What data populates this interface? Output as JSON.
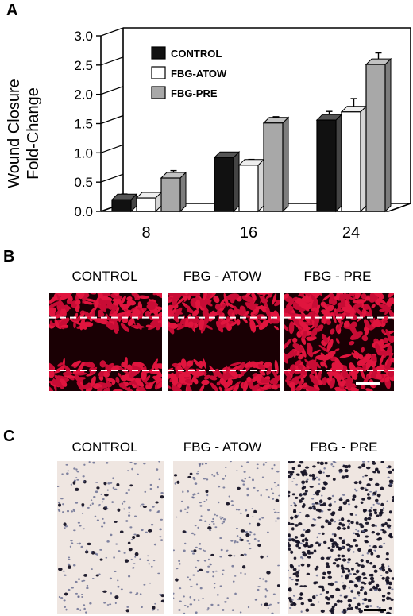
{
  "panels": {
    "a_letter": "A",
    "b_letter": "B",
    "c_letter": "C"
  },
  "chart_data": {
    "type": "bar",
    "ylabel_line1": "Wound Closure",
    "ylabel_line2": "Fold-Change",
    "xlabel": "",
    "categories": [
      "8",
      "16",
      "24"
    ],
    "ylim": [
      0,
      3
    ],
    "yticks": [
      "0.0",
      "0.5",
      "1.0",
      "1.5",
      "2.0",
      "2.5",
      "3.0"
    ],
    "series": [
      {
        "name": "CONTROL",
        "color": "#111111",
        "values": [
          0.2,
          0.92,
          1.56
        ],
        "errors": [
          0.05,
          0.04,
          0.1
        ]
      },
      {
        "name": "FBG-ATOW",
        "color": "#ffffff",
        "values": [
          0.23,
          0.79,
          1.7
        ],
        "errors": [
          0.04,
          0.05,
          0.18
        ]
      },
      {
        "name": "FBG-PRE",
        "color": "#a8a8a8",
        "values": [
          0.57,
          1.51,
          2.51
        ],
        "errors": [
          0.08,
          0.06,
          0.15
        ]
      }
    ],
    "legend_position": "top-left",
    "grid": false
  },
  "panel_b": {
    "labels": [
      "CONTROL",
      "FBG - ATOW",
      "FBG - PRE"
    ]
  },
  "panel_c": {
    "labels": [
      "CONTROL",
      "FBG - ATOW",
      "FBG - PRE"
    ]
  }
}
